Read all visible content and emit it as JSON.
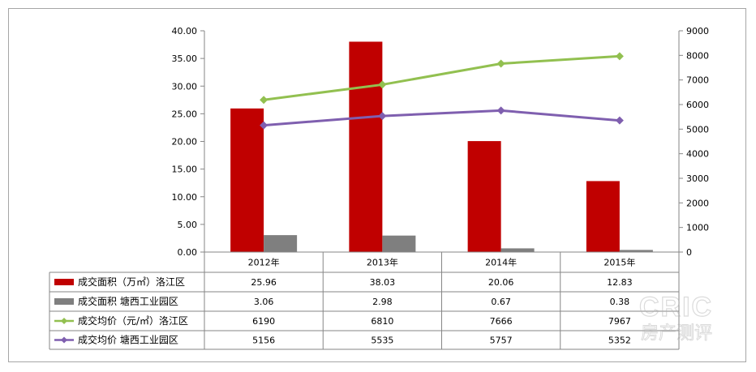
{
  "chart_data": {
    "type": "bar",
    "categories": [
      "2012年",
      "2013年",
      "2014年",
      "2015年"
    ],
    "left_axis": {
      "range": [
        0,
        40
      ],
      "ticks": [
        "0.00",
        "5.00",
        "10.00",
        "15.00",
        "20.00",
        "25.00",
        "30.00",
        "35.00",
        "40.00"
      ]
    },
    "right_axis": {
      "range": [
        0,
        9000
      ],
      "ticks": [
        "0",
        "1000",
        "2000",
        "3000",
        "4000",
        "5000",
        "6000",
        "7000",
        "8000",
        "9000"
      ]
    },
    "series": [
      {
        "name": "成交面积（万㎡）洛江区",
        "kind": "bar",
        "axis": "left",
        "color": "#c00000",
        "values": [
          25.96,
          38.03,
          20.06,
          12.83
        ],
        "labels": [
          "25.96",
          "38.03",
          "20.06",
          "12.83"
        ]
      },
      {
        "name": "成交面积 塘西工业园区",
        "kind": "bar",
        "axis": "left",
        "color": "#7f7f7f",
        "values": [
          3.06,
          2.98,
          0.67,
          0.38
        ],
        "labels": [
          "3.06",
          "2.98",
          "0.67",
          "0.38"
        ]
      },
      {
        "name": "成交均价（元/㎡）洛江区",
        "kind": "line",
        "axis": "right",
        "color": "#92c050",
        "values": [
          6190,
          6810,
          7666,
          7967
        ],
        "labels": [
          "6190",
          "6810",
          "7666",
          "7967"
        ]
      },
      {
        "name": "成交均价 塘西工业园区",
        "kind": "line",
        "axis": "right",
        "color": "#7f5faf",
        "values": [
          5156,
          5535,
          5757,
          5352
        ],
        "labels": [
          "5156",
          "5535",
          "5757",
          "5352"
        ]
      }
    ],
    "data_table": true,
    "grid": false
  },
  "watermark": {
    "line1": "CRIC",
    "line2": "房产测评"
  }
}
